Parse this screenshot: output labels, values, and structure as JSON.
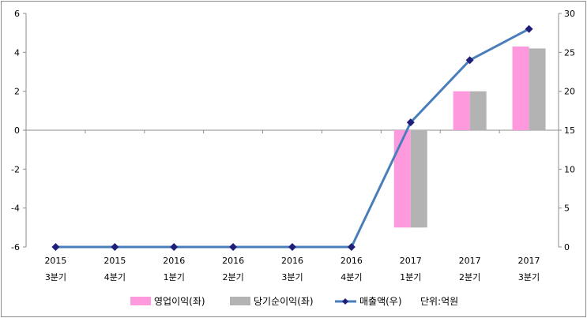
{
  "chart_data": {
    "type": "bar",
    "categories": [
      {
        "year": "2015",
        "quarter": "3분기"
      },
      {
        "year": "2015",
        "quarter": "4분기"
      },
      {
        "year": "2016",
        "quarter": "1분기"
      },
      {
        "year": "2016",
        "quarter": "2분기"
      },
      {
        "year": "2016",
        "quarter": "3분기"
      },
      {
        "year": "2016",
        "quarter": "4분기"
      },
      {
        "year": "2017",
        "quarter": "1분기"
      },
      {
        "year": "2017",
        "quarter": "2분기"
      },
      {
        "year": "2017",
        "quarter": "3분기"
      }
    ],
    "series": [
      {
        "name": "영업이익(좌)",
        "type": "bar",
        "axis": "left",
        "color": "#ff99dd",
        "values": [
          null,
          null,
          null,
          null,
          null,
          null,
          -5.0,
          2.0,
          4.3
        ]
      },
      {
        "name": "당기순이익(좌)",
        "type": "bar",
        "axis": "left",
        "color": "#b3b3b3",
        "values": [
          null,
          null,
          null,
          null,
          null,
          null,
          -5.0,
          2.0,
          4.2
        ]
      },
      {
        "name": "매출액(우)",
        "type": "line",
        "axis": "right",
        "color": "#4a7ebb",
        "marker_color": "#1f1f7a",
        "values": [
          0,
          0,
          0,
          0,
          0,
          0,
          16,
          24,
          28
        ]
      }
    ],
    "y_left": {
      "min": -6,
      "max": 6,
      "ticks": [
        "-6",
        "-4",
        "-2",
        "0",
        "2",
        "4",
        "6"
      ]
    },
    "y_right": {
      "min": 0,
      "max": 30,
      "ticks": [
        "0",
        "5",
        "10",
        "15",
        "20",
        "25",
        "30"
      ]
    },
    "unit_note": "단위:억원",
    "legend_position": "bottom",
    "grid": false
  }
}
